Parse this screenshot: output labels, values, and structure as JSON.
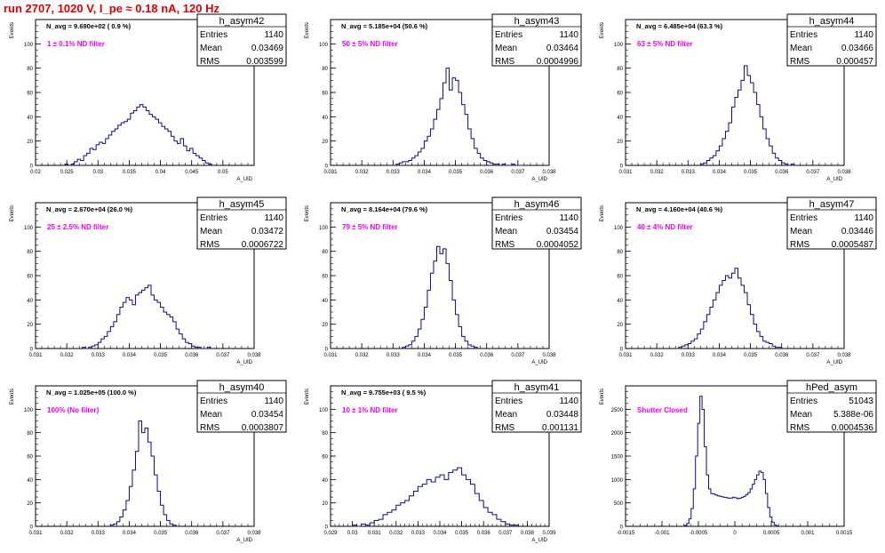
{
  "run_title": "run 2707,  1020 V, I_pe ≈ 0.18 nA, 120 Hz",
  "colors": {
    "title": "#e00000",
    "histogram_line": "#0c0c88",
    "annotation": "#ee00ee",
    "axis": "#000000"
  },
  "chart_data": [
    {
      "type": "bar",
      "name": "h_asym42",
      "stats": {
        "entries_label": "Entries",
        "entries": "1140",
        "mean_label": "Mean",
        "mean": "0.03469",
        "rms_label": "RMS",
        "rms": "0.003599"
      },
      "header_text": "N_avg = 9.690e+02 ( 0.9 %)",
      "filter_text": "1 ± 0.1% ND filter",
      "ylabel": "Events",
      "xlabel": "A_UID",
      "xlim": [
        0.02,
        0.055
      ],
      "ylim": [
        0,
        120
      ],
      "xticks": [
        0.02,
        0.025,
        0.03,
        0.035,
        0.04,
        0.045,
        0.05
      ],
      "xtick_labels": [
        "0.02",
        "0.025",
        "0.03",
        "0.035",
        "0.04",
        "0.045",
        "0.05"
      ],
      "yticks": [
        0,
        20,
        40,
        60,
        80,
        100
      ],
      "ytick_labels": [
        "0",
        "20",
        "40",
        "60",
        "80",
        "100"
      ],
      "bins": {
        "start": 0.0247,
        "width": 0.0005,
        "values": [
          1,
          0,
          1,
          3,
          5,
          4,
          8,
          10,
          14,
          13,
          17,
          19,
          18,
          22,
          25,
          28,
          30,
          33,
          35,
          36,
          38,
          43,
          45,
          48,
          50,
          48,
          45,
          42,
          40,
          38,
          35,
          32,
          30,
          28,
          24,
          20,
          18,
          22,
          16,
          12,
          14,
          10,
          8,
          6,
          4,
          2,
          1
        ]
      }
    },
    {
      "type": "bar",
      "name": "h_asym43",
      "stats": {
        "entries_label": "Entries",
        "entries": "1140",
        "mean_label": "Mean",
        "mean": "0.03464",
        "rms_label": "RMS",
        "rms": "0.0004996"
      },
      "header_text": "N_avg = 5.185e+04 (50.6 %)",
      "filter_text": "50 ± 5% ND filter",
      "ylabel": "Events",
      "xlabel": "A_UID",
      "xlim": [
        0.031,
        0.038
      ],
      "ylim": [
        0,
        120
      ],
      "xticks": [
        0.031,
        0.032,
        0.033,
        0.034,
        0.035,
        0.036,
        0.037,
        0.038
      ],
      "xtick_labels": [
        "0.031",
        "0.032",
        "0.033",
        "0.034",
        "0.035",
        "0.036",
        "0.037",
        "0.038"
      ],
      "yticks": [
        0,
        20,
        40,
        60,
        80,
        100
      ],
      "ytick_labels": [
        "0",
        "20",
        "40",
        "60",
        "80",
        "100"
      ],
      "bins": {
        "start": 0.033,
        "width": 0.0001,
        "values": [
          0,
          1,
          2,
          3,
          3,
          4,
          6,
          8,
          11,
          14,
          20,
          24,
          30,
          38,
          46,
          55,
          68,
          80,
          62,
          72,
          70,
          60,
          50,
          42,
          30,
          22,
          14,
          10,
          6,
          4,
          3,
          2,
          1,
          1,
          0,
          1,
          0,
          0,
          1,
          0,
          0,
          0
        ]
      }
    },
    {
      "type": "bar",
      "name": "h_asym44",
      "stats": {
        "entries_label": "Entries",
        "entries": "1140",
        "mean_label": "Mean",
        "mean": "0.03466",
        "rms_label": "RMS",
        "rms": "0.000457"
      },
      "header_text": "N_avg = 6.485e+04 (63.3 %)",
      "filter_text": "63 ± 5% ND filter",
      "ylabel": "Events",
      "xlabel": "A_UID",
      "xlim": [
        0.031,
        0.038
      ],
      "ylim": [
        0,
        120
      ],
      "xticks": [
        0.031,
        0.032,
        0.033,
        0.034,
        0.035,
        0.036,
        0.037,
        0.038
      ],
      "xtick_labels": [
        "0.031",
        "0.032",
        "0.033",
        "0.034",
        "0.035",
        "0.036",
        "0.037",
        "0.038"
      ],
      "yticks": [
        0,
        20,
        40,
        60,
        80,
        100
      ],
      "ytick_labels": [
        "0",
        "20",
        "40",
        "60",
        "80",
        "100"
      ],
      "bins": {
        "start": 0.0334,
        "width": 0.0001,
        "values": [
          1,
          2,
          4,
          6,
          8,
          12,
          16,
          22,
          28,
          35,
          48,
          56,
          62,
          70,
          82,
          74,
          68,
          60,
          50,
          40,
          30,
          22,
          16,
          10,
          6,
          4,
          2,
          1,
          0,
          1
        ]
      }
    },
    {
      "type": "bar",
      "name": "h_asym45",
      "stats": {
        "entries_label": "Entries",
        "entries": "1140",
        "mean_label": "Mean",
        "mean": "0.03472",
        "rms_label": "RMS",
        "rms": "0.0006722"
      },
      "header_text": "N_avg = 2.670e+04 (26.0 %)",
      "filter_text": "25 ± 2.5% ND filter",
      "ylabel": "Events",
      "xlabel": "A_UID",
      "xlim": [
        0.031,
        0.038
      ],
      "ylim": [
        0,
        120
      ],
      "xticks": [
        0.031,
        0.032,
        0.033,
        0.034,
        0.035,
        0.036,
        0.037,
        0.038
      ],
      "xtick_labels": [
        "0.031",
        "0.032",
        "0.033",
        "0.034",
        "0.035",
        "0.036",
        "0.037",
        "0.038"
      ],
      "yticks": [
        0,
        20,
        40,
        60,
        80,
        100
      ],
      "ytick_labels": [
        "0",
        "20",
        "40",
        "60",
        "80",
        "100"
      ],
      "bins": {
        "start": 0.0325,
        "width": 0.0001,
        "values": [
          1,
          0,
          1,
          2,
          3,
          5,
          8,
          10,
          14,
          18,
          22,
          28,
          34,
          38,
          42,
          40,
          36,
          44,
          46,
          48,
          50,
          52,
          44,
          40,
          38,
          34,
          30,
          28,
          26,
          22,
          16,
          12,
          8,
          5,
          4,
          2,
          1,
          1,
          0,
          0,
          1
        ]
      }
    },
    {
      "type": "bar",
      "name": "h_asym46",
      "stats": {
        "entries_label": "Entries",
        "entries": "1140",
        "mean_label": "Mean",
        "mean": "0.03454",
        "rms_label": "RMS",
        "rms": "0.0004052"
      },
      "header_text": "N_avg = 8.164e+04 (79.6 %)",
      "filter_text": "79 ± 5% ND filter",
      "ylabel": "Events",
      "xlabel": "A_UID",
      "xlim": [
        0.031,
        0.038
      ],
      "ylim": [
        0,
        120
      ],
      "xticks": [
        0.031,
        0.032,
        0.033,
        0.034,
        0.035,
        0.036,
        0.037,
        0.038
      ],
      "xtick_labels": [
        "0.031",
        "0.032",
        "0.033",
        "0.034",
        "0.035",
        "0.036",
        "0.037",
        "0.038"
      ],
      "yticks": [
        0,
        20,
        40,
        60,
        80,
        100
      ],
      "ytick_labels": [
        "0",
        "20",
        "40",
        "60",
        "80",
        "100"
      ],
      "bins": {
        "start": 0.0333,
        "width": 0.0001,
        "values": [
          1,
          2,
          3,
          6,
          10,
          16,
          24,
          34,
          48,
          62,
          72,
          84,
          78,
          82,
          70,
          56,
          40,
          28,
          18,
          10,
          6,
          3,
          2,
          1
        ]
      }
    },
    {
      "type": "bar",
      "name": "h_asym47",
      "stats": {
        "entries_label": "Entries",
        "entries": "1140",
        "mean_label": "Mean",
        "mean": "0.03446",
        "rms_label": "RMS",
        "rms": "0.0005487"
      },
      "header_text": "N_avg = 4.160e+04 (40.6 %)",
      "filter_text": "40 ± 4% ND filter",
      "ylabel": "Events",
      "xlabel": "A_UID",
      "xlim": [
        0.031,
        0.038
      ],
      "ylim": [
        0,
        120
      ],
      "xticks": [
        0.031,
        0.032,
        0.033,
        0.034,
        0.035,
        0.036,
        0.037,
        0.038
      ],
      "xtick_labels": [
        "0.031",
        "0.032",
        "0.033",
        "0.034",
        "0.035",
        "0.036",
        "0.037",
        "0.038"
      ],
      "yticks": [
        0,
        20,
        40,
        60,
        80,
        100
      ],
      "ytick_labels": [
        "0",
        "20",
        "40",
        "60",
        "80",
        "100"
      ],
      "bins": {
        "start": 0.0326,
        "width": 0.0001,
        "values": [
          0,
          1,
          2,
          3,
          4,
          6,
          8,
          12,
          16,
          22,
          28,
          34,
          40,
          46,
          52,
          56,
          60,
          58,
          62,
          66,
          58,
          52,
          46,
          36,
          28,
          20,
          14,
          10,
          6,
          5,
          4,
          2,
          1,
          1
        ]
      }
    },
    {
      "type": "bar",
      "name": "h_asym40",
      "stats": {
        "entries_label": "Entries",
        "entries": "1140",
        "mean_label": "Mean",
        "mean": "0.03454",
        "rms_label": "RMS",
        "rms": "0.0003807"
      },
      "header_text": "N_avg = 1.025e+05 (100.0 %)",
      "filter_text": "100% (No filter)",
      "ylabel": "Events",
      "xlabel": "A_UID",
      "xlim": [
        0.031,
        0.038
      ],
      "ylim": [
        0,
        120
      ],
      "xticks": [
        0.031,
        0.032,
        0.033,
        0.034,
        0.035,
        0.036,
        0.037,
        0.038
      ],
      "xtick_labels": [
        "0.031",
        "0.032",
        "0.033",
        "0.034",
        "0.035",
        "0.036",
        "0.037",
        "0.038"
      ],
      "yticks": [
        0,
        20,
        40,
        60,
        80,
        100
      ],
      "ytick_labels": [
        "0",
        "20",
        "40",
        "60",
        "80",
        "100"
      ],
      "bins": {
        "start": 0.0334,
        "width": 0.0001,
        "values": [
          1,
          2,
          4,
          8,
          14,
          22,
          34,
          48,
          64,
          90,
          80,
          84,
          72,
          60,
          44,
          30,
          18,
          10,
          5,
          2,
          1
        ]
      }
    },
    {
      "type": "bar",
      "name": "h_asym41",
      "stats": {
        "entries_label": "Entries",
        "entries": "1140",
        "mean_label": "Mean",
        "mean": "0.03448",
        "rms_label": "RMS",
        "rms": "0.001131"
      },
      "header_text": "N_avg = 9.755e+03 ( 9.5 %)",
      "filter_text": "10 ± 1% ND filter",
      "ylabel": "Events",
      "xlabel": "A_UID",
      "xlim": [
        0.029,
        0.039
      ],
      "ylim": [
        0,
        120
      ],
      "xticks": [
        0.029,
        0.03,
        0.031,
        0.032,
        0.033,
        0.034,
        0.035,
        0.036,
        0.037,
        0.038,
        0.039
      ],
      "xtick_labels": [
        "0.029",
        "0.03",
        "0.031",
        "0.032",
        "0.033",
        "0.034",
        "0.035",
        "0.036",
        "0.037",
        "0.038",
        "0.039"
      ],
      "yticks": [
        0,
        20,
        40,
        60,
        80,
        100
      ],
      "ytick_labels": [
        "0",
        "20",
        "40",
        "60",
        "80",
        "100"
      ],
      "bins": {
        "start": 0.03,
        "width": 0.0002,
        "values": [
          1,
          0,
          2,
          1,
          3,
          5,
          6,
          10,
          12,
          14,
          18,
          20,
          22,
          26,
          30,
          34,
          36,
          40,
          38,
          42,
          44,
          40,
          46,
          48,
          50,
          44,
          40,
          36,
          28,
          22,
          16,
          12,
          10,
          6,
          4,
          2,
          1,
          1
        ]
      }
    },
    {
      "type": "bar",
      "name": "hPed_asym",
      "stats": {
        "entries_label": "Entries",
        "entries": "51043",
        "mean_label": "Mean",
        "mean": "5.388e-06",
        "rms_label": "RMS",
        "rms": "0.0004536"
      },
      "header_text": "",
      "filter_text": "Shutter Closed",
      "ylabel": "Events",
      "xlabel": "",
      "xlim": [
        -0.0015,
        0.0015
      ],
      "ylim": [
        0,
        3000
      ],
      "xticks": [
        -0.0015,
        -0.001,
        -0.0005,
        0,
        0.0005,
        0.001,
        0.0015
      ],
      "xtick_labels": [
        "-0.0015",
        "-0.001",
        "-0.0005",
        "0",
        "0.0005",
        "0.001",
        "0.0015"
      ],
      "yticks": [
        0,
        500,
        1000,
        1500,
        2000,
        2500
      ],
      "ytick_labels": [
        "0",
        "500",
        "1000",
        "1500",
        "2000",
        "2500"
      ],
      "bins": {
        "start": -0.00072,
        "width": 3e-05,
        "values": [
          0,
          20,
          60,
          160,
          380,
          800,
          1500,
          2200,
          2780,
          2500,
          1700,
          1100,
          800,
          700,
          690,
          670,
          650,
          640,
          630,
          620,
          610,
          600,
          605,
          620,
          610,
          590,
          600,
          620,
          640,
          680,
          720,
          800,
          900,
          1000,
          1100,
          1180,
          1150,
          1000,
          700,
          400,
          200,
          90,
          30,
          10
        ]
      }
    }
  ]
}
